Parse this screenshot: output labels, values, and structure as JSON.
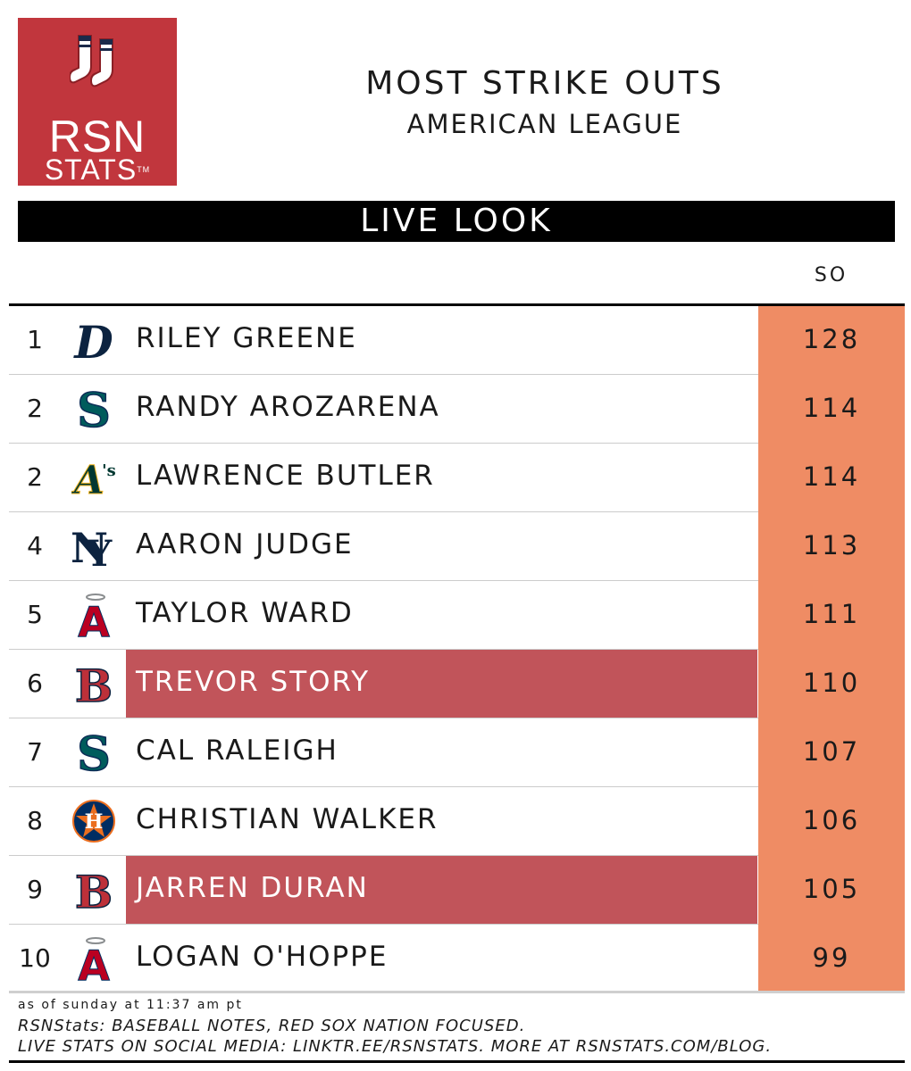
{
  "logo": {
    "line1": "RSN",
    "line2": "STATS",
    "tm": "TM"
  },
  "header": {
    "title": "MOST STRIKE OUTS",
    "subtitle": "AMERICAN LEAGUE"
  },
  "banner": "LIVE LOOK",
  "column_header": "SO",
  "colors": {
    "highlight_row": "#c1545a",
    "stat_column": "#ef8c64",
    "logo_bg": "#c1363d"
  },
  "rows": [
    {
      "rank": "1",
      "team_icon": "tigers-icon",
      "name": "RILEY GREENE",
      "so": "128",
      "highlight": false
    },
    {
      "rank": "2",
      "team_icon": "mariners-icon",
      "name": "RANDY AROZARENA",
      "so": "114",
      "highlight": false
    },
    {
      "rank": "2",
      "team_icon": "athletics-icon",
      "name": "LAWRENCE BUTLER",
      "so": "114",
      "highlight": false
    },
    {
      "rank": "4",
      "team_icon": "yankees-icon",
      "name": "AARON JUDGE",
      "so": "113",
      "highlight": false
    },
    {
      "rank": "5",
      "team_icon": "angels-icon",
      "name": "TAYLOR WARD",
      "so": "111",
      "highlight": false
    },
    {
      "rank": "6",
      "team_icon": "red-sox-icon",
      "name": "TREVOR STORY",
      "so": "110",
      "highlight": true
    },
    {
      "rank": "7",
      "team_icon": "mariners-icon",
      "name": "CAL RALEIGH",
      "so": "107",
      "highlight": false
    },
    {
      "rank": "8",
      "team_icon": "astros-icon",
      "name": "CHRISTIAN WALKER",
      "so": "106",
      "highlight": false
    },
    {
      "rank": "9",
      "team_icon": "red-sox-icon",
      "name": "JARREN DURAN",
      "so": "105",
      "highlight": true
    },
    {
      "rank": "10",
      "team_icon": "angels-icon",
      "name": "LOGAN O'HOPPE",
      "so": "99",
      "highlight": false
    }
  ],
  "footer": {
    "timestamp": "as of sunday at 11:37 am pt",
    "line2": "RSNStats: BASEBALL NOTES, RED SOX NATION FOCUSED.",
    "line3": "LIVE STATS ON SOCIAL MEDIA: LINKTR.EE/RSNSTATS. MORE AT RSNSTATS.COM/BLOG."
  }
}
